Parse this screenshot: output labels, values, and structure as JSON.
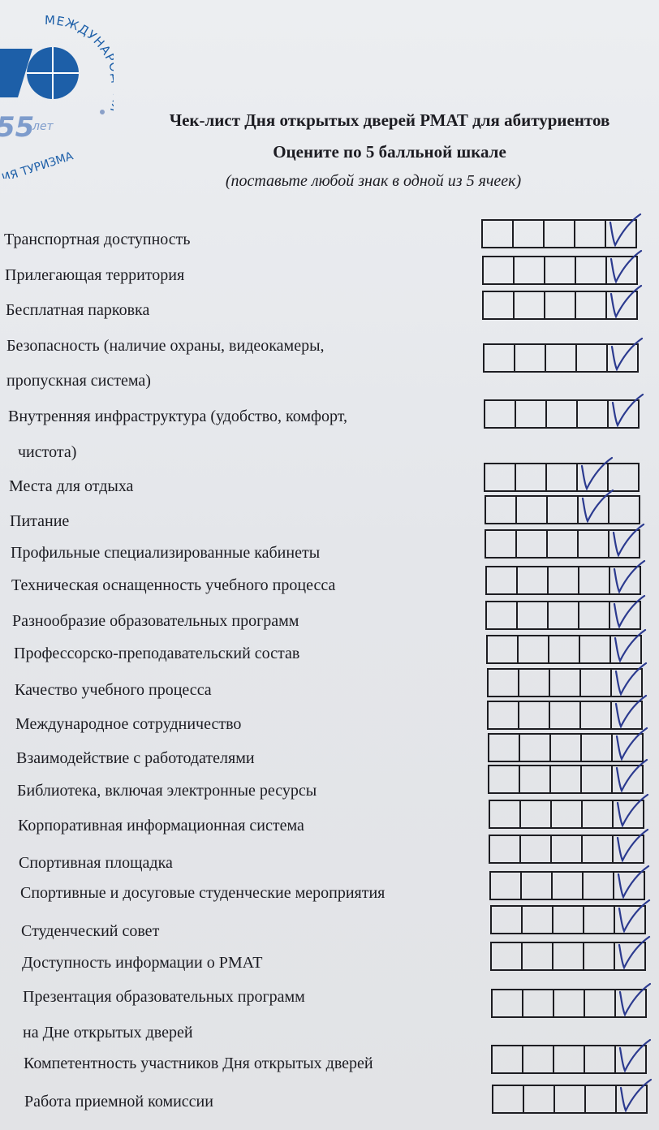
{
  "logo": {
    "text_top": "МЕЖДУНАРОДНАЯ",
    "text_bottom": "АКАДЕМИЯ ТУРИЗМА",
    "years": "55",
    "years_unit": "лет",
    "color": "#1d5fa8"
  },
  "header": {
    "title": "Чек-лист Дня открытых дверей РМАТ для абитуриентов",
    "subtitle": "Оцените по 5 балльной шкале",
    "instruction": "(поставьте любой знак в одной из 5 ячеек)"
  },
  "scale_max": 5,
  "ink_color": "#2b3a8f",
  "items": [
    {
      "lines": [
        "Транспортная доступность"
      ],
      "rating": 5
    },
    {
      "lines": [
        "Прилегающая территория"
      ],
      "rating": 5
    },
    {
      "lines": [
        "Бесплатная парковка"
      ],
      "rating": 5
    },
    {
      "lines": [
        "Безопасность (наличие охраны, видеокамеры,",
        "пропускная система)"
      ],
      "rating": 5
    },
    {
      "lines": [
        "Внутренняя инфраструктура (удобство, комфорт,",
        "чистота)"
      ],
      "rating": 5
    },
    {
      "lines": [
        "Места для отдыха"
      ],
      "rating": 4
    },
    {
      "lines": [
        "Питание"
      ],
      "rating": 4
    },
    {
      "lines": [
        "Профильные специализированные кабинеты"
      ],
      "rating": 5
    },
    {
      "lines": [
        "Техническая оснащенность учебного процесса"
      ],
      "rating": 5
    },
    {
      "lines": [
        "Разнообразие образовательных программ"
      ],
      "rating": 5
    },
    {
      "lines": [
        "Профессорско-преподавательский состав"
      ],
      "rating": 5
    },
    {
      "lines": [
        "Качество учебного процесса"
      ],
      "rating": 5
    },
    {
      "lines": [
        "Международное сотрудничество"
      ],
      "rating": 5
    },
    {
      "lines": [
        "Взаимодействие с работодателями"
      ],
      "rating": 5
    },
    {
      "lines": [
        "Библиотека, включая электронные ресурсы"
      ],
      "rating": 5
    },
    {
      "lines": [
        "Корпоративная информационная система"
      ],
      "rating": 5
    },
    {
      "lines": [
        "Спортивная площадка"
      ],
      "rating": 5
    },
    {
      "lines": [
        "Спортивные и досуговые студенческие мероприятия"
      ],
      "rating": 5
    },
    {
      "lines": [
        "Студенческий совет"
      ],
      "rating": 5
    },
    {
      "lines": [
        "Доступность информации о РМАТ"
      ],
      "rating": 5
    },
    {
      "lines": [
        "Презентация образовательных программ",
        "на Дне открытых дверей"
      ],
      "rating": 5
    },
    {
      "lines": [
        "Компетентность участников Дня открытых дверей"
      ],
      "rating": 5
    },
    {
      "lines": [
        "Работа приемной комиссии"
      ],
      "rating": 5
    }
  ]
}
